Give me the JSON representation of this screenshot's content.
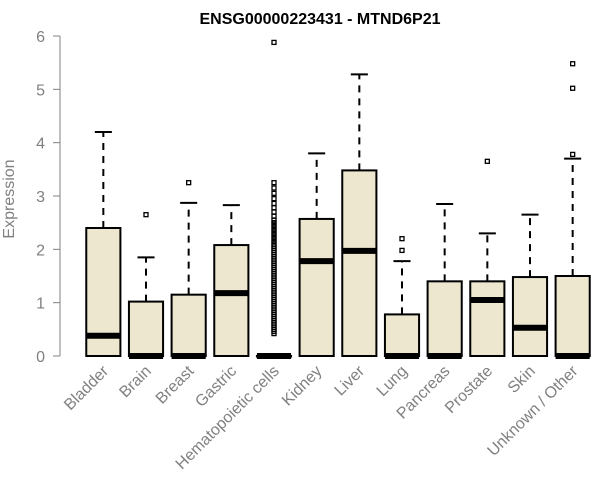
{
  "chart_data": {
    "type": "boxplot",
    "title": "ENSG00000223431 - MTND6P21",
    "xlabel": "",
    "ylabel": "Expression",
    "ylim": [
      0,
      6
    ],
    "yticks": [
      0,
      1,
      2,
      3,
      4,
      5,
      6
    ],
    "grid": false,
    "colors": {
      "box_fill": "#ede7cf",
      "stroke": "#000000",
      "axis": "#808080"
    },
    "categories": [
      "Bladder",
      "Brain",
      "Breast",
      "Gastric",
      "Hematopoietic cells",
      "Kidney",
      "Liver",
      "Lung",
      "Pancreas",
      "Prostate",
      "Skin",
      "Unknown / Other"
    ],
    "boxes": [
      {
        "category": "Bladder",
        "min": 0,
        "q1": 0,
        "median": 0.38,
        "q3": 2.4,
        "max": 4.2,
        "outliers": []
      },
      {
        "category": "Brain",
        "min": 0,
        "q1": 0,
        "median": 0.0,
        "q3": 1.02,
        "max": 1.85,
        "outliers": [
          2.65
        ]
      },
      {
        "category": "Breast",
        "min": 0,
        "q1": 0,
        "median": 0.0,
        "q3": 1.15,
        "max": 2.87,
        "outliers": [
          3.25
        ]
      },
      {
        "category": "Gastric",
        "min": 0,
        "q1": 0,
        "median": 1.18,
        "q3": 2.08,
        "max": 2.83,
        "outliers": []
      },
      {
        "category": "Hematopoietic cells",
        "min": 0,
        "q1": 0,
        "median": 0.0,
        "q3": 0.0,
        "max": 0.0,
        "outliers": [
          0.42,
          0.46,
          0.5,
          0.54,
          0.58,
          0.62,
          0.66,
          0.7,
          0.74,
          0.78,
          0.82,
          0.86,
          0.9,
          0.94,
          0.98,
          1.02,
          1.06,
          1.1,
          1.14,
          1.18,
          1.22,
          1.26,
          1.3,
          1.34,
          1.38,
          1.42,
          1.46,
          1.5,
          1.54,
          1.58,
          1.62,
          1.66,
          1.7,
          1.74,
          1.78,
          1.82,
          1.86,
          1.9,
          1.94,
          1.98,
          2.02,
          2.06,
          2.1,
          2.15,
          2.2,
          2.25,
          2.3,
          2.35,
          2.4,
          2.45,
          2.5,
          2.55,
          2.62,
          2.7,
          2.78,
          2.86,
          2.95,
          3.05,
          3.15,
          3.25,
          5.88
        ]
      },
      {
        "category": "Kidney",
        "min": 0,
        "q1": 0,
        "median": 1.78,
        "q3": 2.57,
        "max": 3.8,
        "outliers": []
      },
      {
        "category": "Liver",
        "min": 0,
        "q1": 0,
        "median": 1.97,
        "q3": 3.48,
        "max": 5.28,
        "outliers": []
      },
      {
        "category": "Lung",
        "min": 0,
        "q1": 0,
        "median": 0.0,
        "q3": 0.78,
        "max": 1.78,
        "outliers": [
          1.98,
          2.2
        ]
      },
      {
        "category": "Pancreas",
        "min": 0,
        "q1": 0,
        "median": 0.0,
        "q3": 1.4,
        "max": 2.85,
        "outliers": []
      },
      {
        "category": "Prostate",
        "min": 0,
        "q1": 0,
        "median": 1.05,
        "q3": 1.4,
        "max": 2.3,
        "outliers": [
          3.65
        ]
      },
      {
        "category": "Skin",
        "min": 0,
        "q1": 0,
        "median": 0.53,
        "q3": 1.48,
        "max": 2.65,
        "outliers": []
      },
      {
        "category": "Unknown / Other",
        "min": 0,
        "q1": 0,
        "median": 0.0,
        "q3": 1.5,
        "max": 3.7,
        "outliers": [
          3.78,
          5.02,
          5.48
        ]
      }
    ]
  }
}
